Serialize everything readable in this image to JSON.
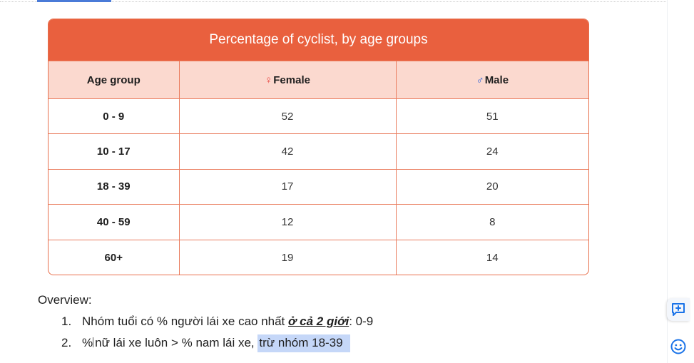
{
  "table": {
    "title": "Percentage of cyclist, by age groups",
    "headers": {
      "age": "Age group",
      "female_symbol": "♀",
      "female": "Female",
      "male_symbol": "♂",
      "male": "Male"
    },
    "rows": [
      {
        "age": "0 - 9",
        "female": "52",
        "male": "51"
      },
      {
        "age": "10 - 17",
        "female": "42",
        "male": "24"
      },
      {
        "age": "18 - 39",
        "female": "17",
        "male": "20"
      },
      {
        "age": "40 - 59",
        "female": "12",
        "male": "8"
      },
      {
        "age": "60+",
        "female": "19",
        "male": "14"
      }
    ],
    "colors": {
      "header_bg": "#e9603e",
      "subheader_bg": "#fbd9cf",
      "border": "#ea7d5f"
    }
  },
  "doc": {
    "overview_label": "Overview:",
    "item1": {
      "number": "1.",
      "text_before": "Nhóm tuổi có % người lái xe cao nhất ",
      "emphasis": "ở cả 2 giới",
      "text_after": ": 0-9"
    },
    "item2": {
      "number": "2.",
      "text_before": "%",
      "text_main": "nữ lái xe luôn > % nam lái xe, ",
      "highlighted": "trừ nhóm 18-39"
    }
  },
  "side_panel": {
    "icons": [
      "add-comment-icon",
      "emoji-icon"
    ],
    "accent": "#1a73e8"
  }
}
